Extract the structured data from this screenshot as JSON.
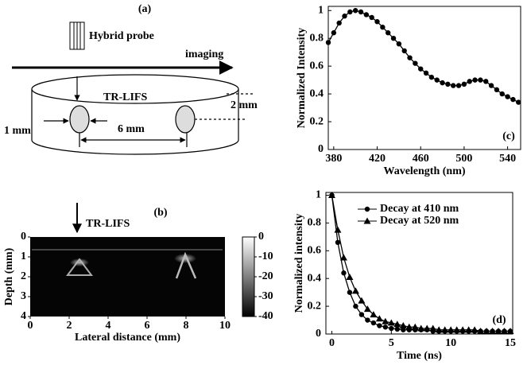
{
  "diagram": {
    "label": "(a)",
    "probe": "Hybrid probe",
    "direction": "imaging",
    "method": "TR-LIFS",
    "height": "2 mm",
    "width": "1 mm",
    "spacing": "6 mm"
  },
  "image_panel": {
    "label": "(b)",
    "marker": "TR-LIFS",
    "xlabel": "Lateral distance (mm)",
    "ylabel": "Depth (mm)",
    "xlim": [
      0,
      10
    ],
    "xticks": [
      0,
      2,
      4,
      6,
      8,
      10
    ],
    "ylim": [
      0,
      4
    ],
    "yticks": [
      0,
      1,
      2,
      3,
      4
    ],
    "colorbar": {
      "lim": [
        -40,
        0
      ],
      "ticks": [
        0,
        -10,
        -20,
        -30,
        -40
      ]
    }
  },
  "chart_data": [
    {
      "type": "line",
      "label": "(c)",
      "xlabel": "Wavelength (nm)",
      "ylabel": "Normalized Intensity",
      "x": [
        375,
        380,
        385,
        390,
        395,
        400,
        405,
        410,
        415,
        420,
        425,
        430,
        435,
        440,
        445,
        450,
        455,
        460,
        465,
        470,
        475,
        480,
        485,
        490,
        495,
        500,
        505,
        510,
        515,
        520,
        525,
        530,
        535,
        540,
        545,
        550
      ],
      "values": [
        0.77,
        0.84,
        0.91,
        0.96,
        0.99,
        1.0,
        0.99,
        0.97,
        0.95,
        0.92,
        0.88,
        0.84,
        0.8,
        0.76,
        0.71,
        0.66,
        0.62,
        0.58,
        0.55,
        0.52,
        0.5,
        0.48,
        0.47,
        0.46,
        0.46,
        0.47,
        0.49,
        0.5,
        0.5,
        0.49,
        0.46,
        0.43,
        0.4,
        0.38,
        0.36,
        0.34
      ],
      "color": "#000000",
      "marker": "circle",
      "xlim": [
        375,
        552
      ],
      "xticks": [
        380,
        420,
        460,
        500,
        540
      ],
      "ylim": [
        0,
        1.03
      ],
      "yticks": [
        0,
        0.2,
        0.4,
        0.6,
        0.8,
        1
      ]
    },
    {
      "type": "line",
      "label": "(d)",
      "xlabel": "Time (ns)",
      "ylabel": "Normalized intensity",
      "x": [
        0,
        0.5,
        1,
        1.5,
        2,
        2.5,
        3,
        3.5,
        4,
        4.5,
        5,
        5.5,
        6,
        6.5,
        7,
        7.5,
        8,
        8.5,
        9,
        9.5,
        10,
        10.5,
        11,
        11.5,
        12,
        12.5,
        13,
        13.5,
        14,
        14.5,
        15
      ],
      "series": [
        {
          "name": "Decay at 410 nm",
          "color": "#000000",
          "marker": "circle",
          "values": [
            1,
            0.66,
            0.44,
            0.3,
            0.2,
            0.14,
            0.1,
            0.08,
            0.06,
            0.05,
            0.04,
            0.035,
            0.03,
            0.03,
            0.03,
            0.03,
            0.03,
            0.02,
            0.02,
            0.02,
            0.02,
            0.02,
            0.02,
            0.02,
            0.02,
            0.02,
            0.02,
            0.02,
            0.02,
            0.02,
            0.02
          ]
        },
        {
          "name": "Decay at 520 nm",
          "color": "#000000",
          "marker": "triangle",
          "values": [
            1,
            0.75,
            0.55,
            0.41,
            0.31,
            0.24,
            0.18,
            0.14,
            0.11,
            0.09,
            0.08,
            0.07,
            0.06,
            0.05,
            0.05,
            0.04,
            0.04,
            0.04,
            0.03,
            0.03,
            0.03,
            0.03,
            0.03,
            0.03,
            0.03,
            0.02,
            0.02,
            0.02,
            0.02,
            0.02,
            0.02
          ]
        }
      ],
      "xlim": [
        -0.5,
        15.2
      ],
      "xticks": [
        0,
        5,
        10,
        15
      ],
      "ylim": [
        0,
        1.02
      ],
      "yticks": [
        0,
        0.2,
        0.4,
        0.6,
        0.8,
        1
      ]
    }
  ]
}
